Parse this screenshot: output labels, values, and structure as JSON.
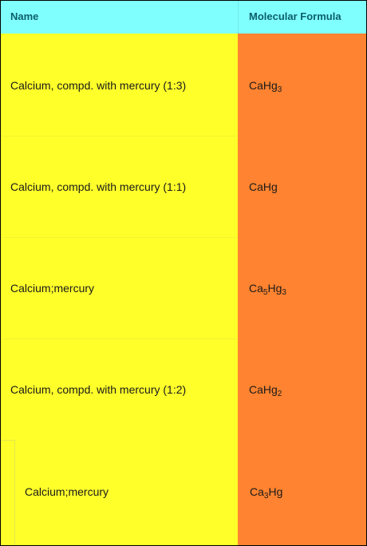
{
  "columns": {
    "name": "Name",
    "formula": "Molecular Formula"
  },
  "rows": [
    {
      "name": "Calcium, compd. with mercury (1:3)",
      "formula": [
        {
          "t": "CaHg"
        },
        {
          "t": "3",
          "sub": true
        }
      ]
    },
    {
      "name": "Calcium, compd. with mercury (1:1)",
      "formula": [
        {
          "t": "CaHg"
        }
      ]
    },
    {
      "name": "Calcium;mercury",
      "formula": [
        {
          "t": "Ca"
        },
        {
          "t": "5",
          "sub": true
        },
        {
          "t": "Hg"
        },
        {
          "t": "3",
          "sub": true
        }
      ]
    },
    {
      "name": "Calcium, compd. with mercury (1:2)",
      "formula": [
        {
          "t": "CaHg"
        },
        {
          "t": "2",
          "sub": true
        }
      ]
    },
    {
      "name": "Calcium;mercury",
      "formula": [
        {
          "t": "Ca"
        },
        {
          "t": "3",
          "sub": true
        },
        {
          "t": "Hg"
        }
      ]
    }
  ],
  "colors": {
    "header_bg": "#80ffff",
    "header_text": "#0b5f6a",
    "name_column_bg": "#ffff2a",
    "formula_column_bg": "#ff8330"
  }
}
